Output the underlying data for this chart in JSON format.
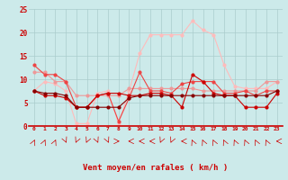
{
  "x": [
    0,
    1,
    2,
    3,
    4,
    5,
    6,
    7,
    8,
    9,
    10,
    11,
    12,
    13,
    14,
    15,
    16,
    17,
    18,
    19,
    20,
    21,
    22,
    23
  ],
  "line_dark_red": [
    7.5,
    7.0,
    7.0,
    6.5,
    4.0,
    4.0,
    4.0,
    4.0,
    4.0,
    6.0,
    6.5,
    6.5,
    6.5,
    6.5,
    6.5,
    6.5,
    6.5,
    6.5,
    6.5,
    6.5,
    6.5,
    6.5,
    6.5,
    7.5
  ],
  "line_red": [
    7.5,
    6.5,
    6.5,
    6.0,
    4.0,
    4.0,
    6.5,
    7.0,
    7.0,
    6.5,
    6.5,
    7.0,
    7.0,
    6.5,
    4.0,
    11.0,
    9.5,
    7.0,
    6.5,
    6.5,
    4.0,
    4.0,
    4.0,
    7.0
  ],
  "line_med_red": [
    13.0,
    11.0,
    11.0,
    9.5,
    4.0,
    4.0,
    6.5,
    7.0,
    1.0,
    6.0,
    11.5,
    7.5,
    7.5,
    7.0,
    9.0,
    9.5,
    9.5,
    9.5,
    7.0,
    7.0,
    7.5,
    6.5,
    7.5,
    7.5
  ],
  "line_light_red": [
    11.5,
    11.5,
    9.5,
    9.5,
    6.5,
    6.5,
    6.5,
    6.5,
    6.5,
    8.0,
    8.0,
    8.0,
    8.0,
    8.0,
    8.0,
    8.0,
    7.5,
    7.5,
    7.5,
    7.5,
    7.5,
    7.5,
    9.5,
    9.5
  ],
  "line_very_light": [
    7.5,
    9.5,
    9.0,
    7.5,
    0.5,
    0.5,
    7.0,
    7.5,
    0.5,
    7.5,
    15.5,
    19.5,
    19.5,
    19.5,
    19.5,
    22.5,
    20.5,
    19.5,
    13.0,
    8.5,
    8.0,
    8.0,
    8.0,
    9.5
  ],
  "bg_color": "#cceaea",
  "grid_color": "#aacccc",
  "col_dark_red": "#880000",
  "col_red": "#cc0000",
  "col_med_red": "#ee4444",
  "col_light_red": "#ee9999",
  "col_very_light": "#ffbbbb",
  "xlabel": "Vent moyen/en rafales ( km/h )",
  "ylim": [
    0,
    25
  ],
  "xlim": [
    -0.5,
    23.5
  ],
  "yticks": [
    0,
    5,
    10,
    15,
    20,
    25
  ],
  "xticks": [
    0,
    1,
    2,
    3,
    4,
    5,
    6,
    7,
    8,
    9,
    10,
    11,
    12,
    13,
    14,
    15,
    16,
    17,
    18,
    19,
    20,
    21,
    22,
    23
  ],
  "wind_dirs_deg": [
    45,
    45,
    45,
    135,
    225,
    225,
    135,
    135,
    90,
    270,
    270,
    270,
    225,
    225,
    270,
    315,
    315,
    315,
    315,
    315,
    315,
    315,
    315,
    270
  ]
}
